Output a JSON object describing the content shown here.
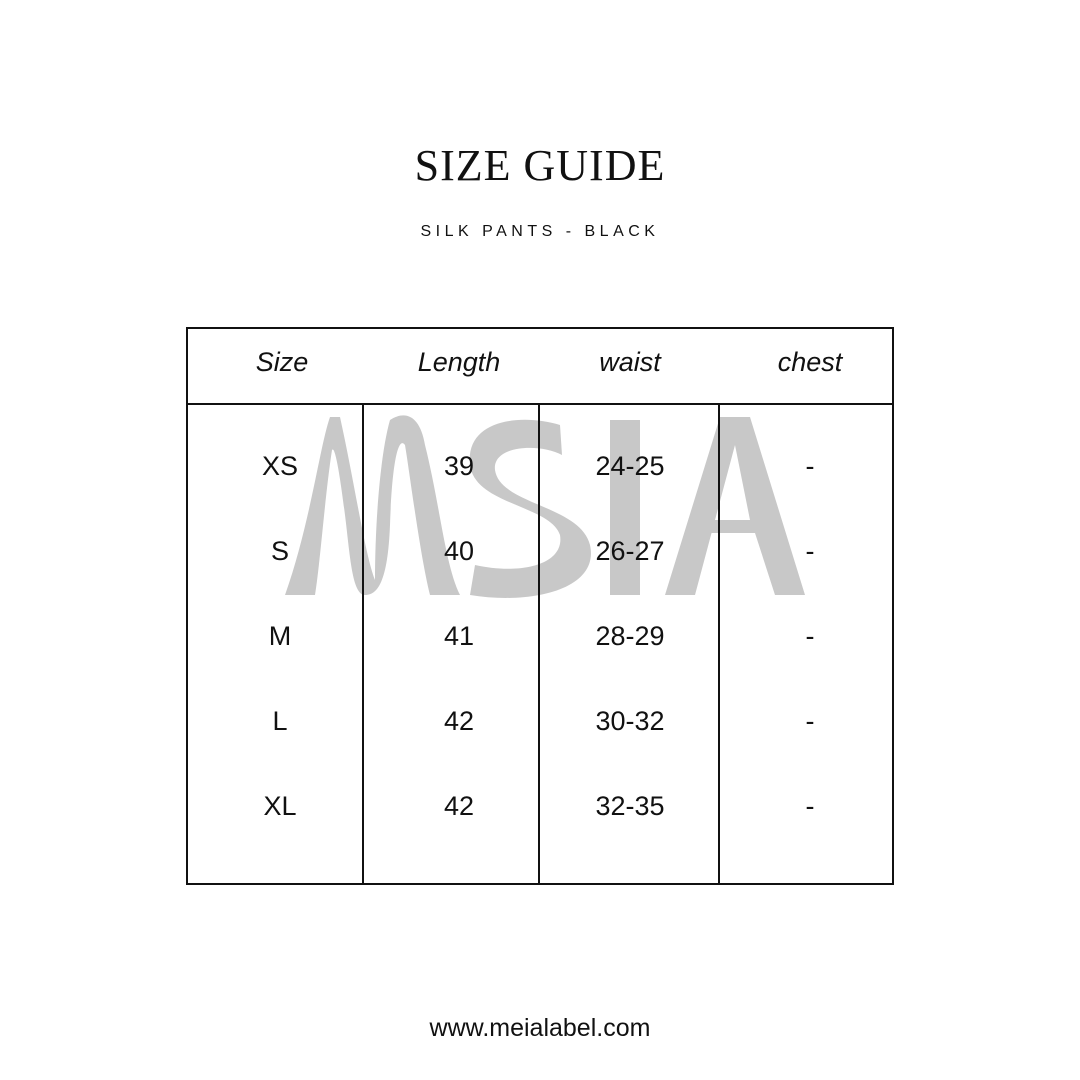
{
  "title": "SIZE GUIDE",
  "subtitle": "SILK PANTS - BLACK",
  "watermark_logo": "MEIA",
  "watermark_color": "#c8c8c8",
  "table": {
    "headers": [
      "Size",
      "Length",
      "waist",
      "chest"
    ],
    "rows": [
      [
        "XS",
        "39",
        "24-25",
        "-"
      ],
      [
        "S",
        "40",
        "26-27",
        "-"
      ],
      [
        "M",
        "41",
        "28-29",
        "-"
      ],
      [
        "L",
        "42",
        "30-32",
        "-"
      ],
      [
        "XL",
        "42",
        "32-35",
        "-"
      ]
    ]
  },
  "footer": "www.meialabel.com"
}
